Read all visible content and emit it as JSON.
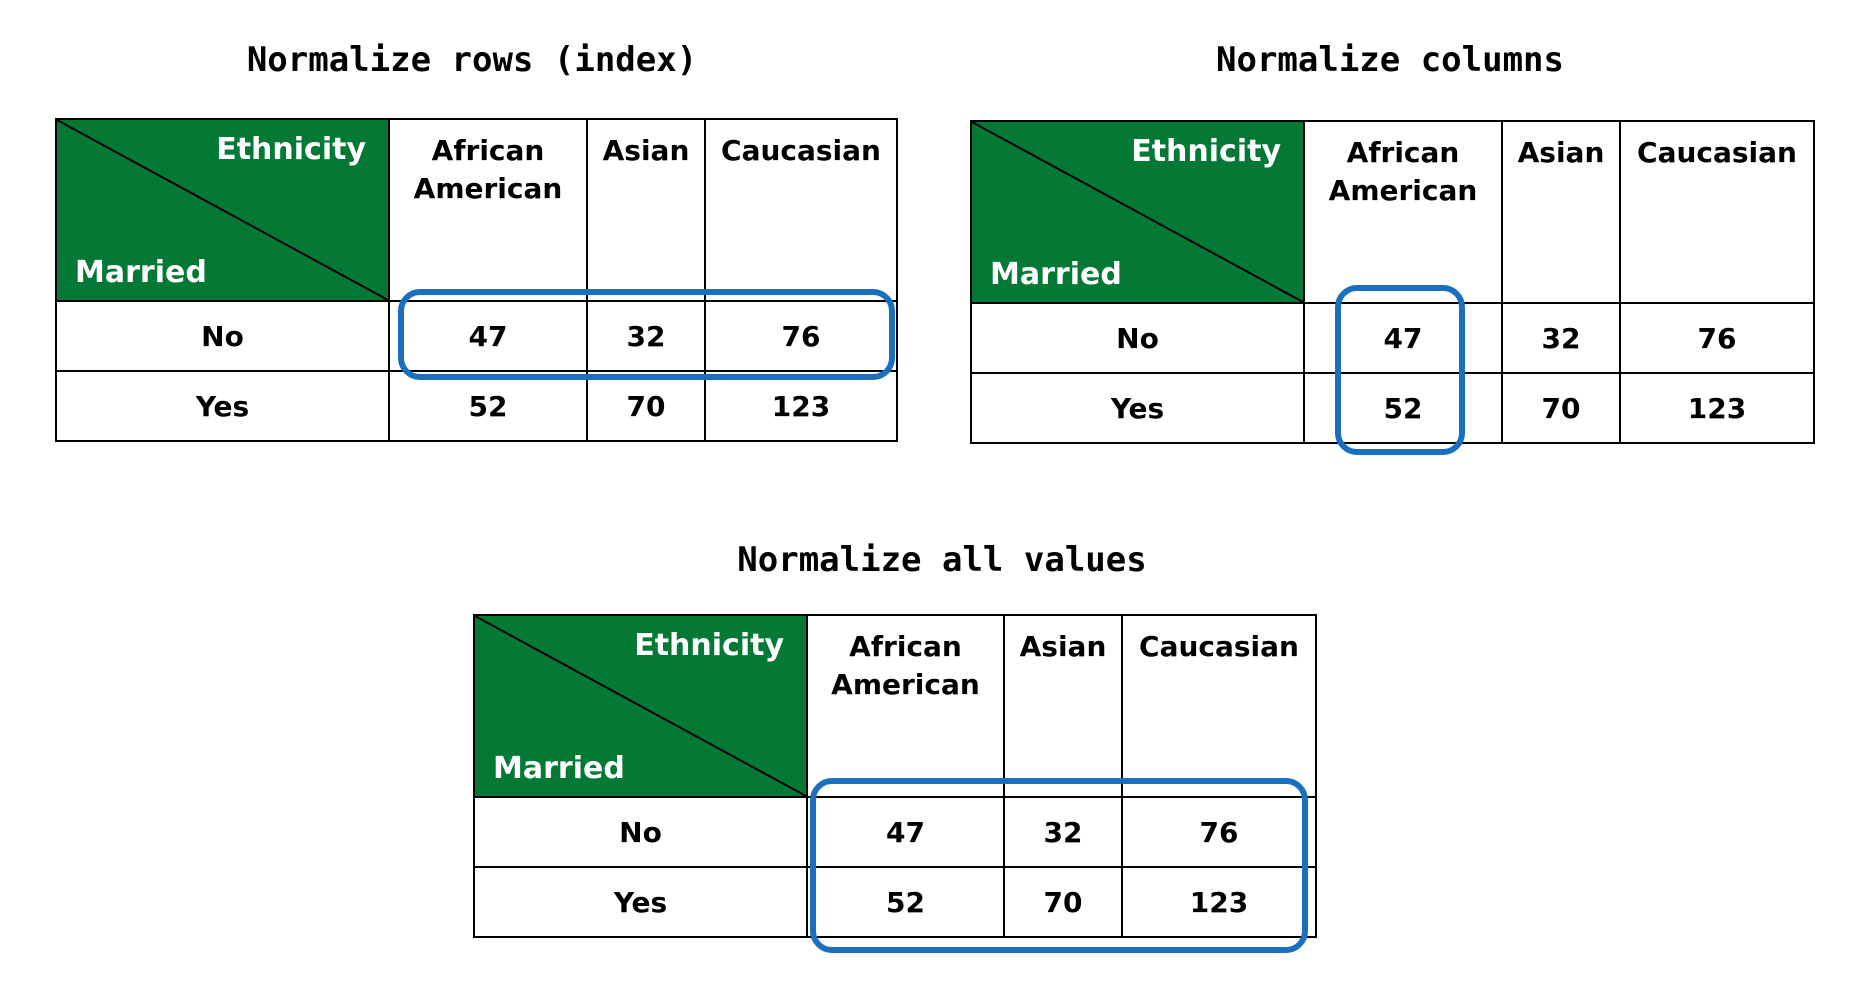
{
  "panels": [
    {
      "title": "Normalize rows (index)"
    },
    {
      "title": "Normalize columns"
    },
    {
      "title": "Normalize all values"
    }
  ],
  "table": {
    "column_variable": "Ethnicity",
    "row_variable": "Married",
    "columns": [
      "African\nAmerican",
      "Asian",
      "Caucasian"
    ],
    "rows": [
      {
        "label": "No",
        "values": [
          "47",
          "32",
          "76"
        ]
      },
      {
        "label": "Yes",
        "values": [
          "52",
          "70",
          "123"
        ]
      }
    ]
  },
  "colors": {
    "corner_fill": "#047835",
    "highlight": "#1a6fbf"
  }
}
